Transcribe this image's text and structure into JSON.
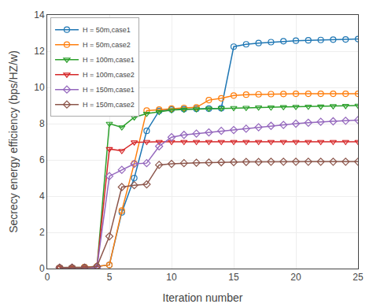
{
  "chart_data": {
    "type": "line",
    "xlabel": "Iteration number",
    "ylabel": "Secrecy energy efficiency (bps/HZ/w)",
    "xlim": [
      0,
      25
    ],
    "ylim": [
      0,
      14
    ],
    "xticks": [
      0,
      5,
      10,
      15,
      20,
      25
    ],
    "yticks": [
      0,
      2,
      4,
      6,
      8,
      10,
      12,
      14
    ],
    "x": [
      1,
      2,
      3,
      4,
      5,
      6,
      7,
      8,
      9,
      10,
      11,
      12,
      13,
      14,
      15,
      16,
      17,
      18,
      19,
      20,
      21,
      22,
      23,
      24,
      25
    ],
    "series": [
      {
        "name": "H = 50m,case1",
        "marker": "circle",
        "values": [
          0.05,
          0.05,
          0.08,
          0.12,
          0.2,
          3.1,
          5.0,
          7.6,
          8.7,
          8.78,
          8.8,
          8.82,
          8.83,
          8.85,
          12.25,
          12.38,
          12.45,
          12.5,
          12.55,
          12.58,
          12.6,
          12.62,
          12.64,
          12.65,
          12.67
        ]
      },
      {
        "name": "H = 50m,case2",
        "marker": "circle",
        "values": [
          0.05,
          0.05,
          0.08,
          0.12,
          0.2,
          3.2,
          5.8,
          8.72,
          8.78,
          8.83,
          8.87,
          8.9,
          9.3,
          9.4,
          9.55,
          9.6,
          9.62,
          9.63,
          9.64,
          9.65,
          9.65,
          9.65,
          9.65,
          9.65,
          9.65
        ]
      },
      {
        "name": "H = 100m,case1",
        "marker": "triangle-down",
        "values": [
          0.05,
          0.05,
          0.05,
          0.05,
          8.0,
          7.8,
          8.35,
          8.55,
          8.65,
          8.75,
          8.78,
          8.8,
          8.83,
          8.85,
          8.87,
          8.88,
          8.9,
          8.9,
          8.92,
          8.93,
          8.94,
          8.95,
          8.97,
          8.98,
          9.0
        ]
      },
      {
        "name": "H = 100m,case2",
        "marker": "triangle-down",
        "values": [
          0.05,
          0.05,
          0.05,
          0.05,
          6.6,
          6.5,
          6.97,
          7.0,
          7.0,
          7.0,
          7.0,
          7.0,
          7.0,
          7.0,
          7.0,
          7.0,
          7.0,
          7.0,
          7.0,
          7.0,
          7.0,
          7.0,
          7.0,
          7.0,
          7.0
        ]
      },
      {
        "name": "H = 150m,case1",
        "marker": "diamond",
        "values": [
          0.05,
          0.05,
          0.05,
          0.05,
          5.1,
          5.45,
          5.78,
          5.82,
          6.75,
          7.25,
          7.38,
          7.45,
          7.52,
          7.6,
          7.65,
          7.72,
          7.8,
          7.88,
          7.93,
          8.0,
          8.05,
          8.1,
          8.13,
          8.16,
          8.2
        ]
      },
      {
        "name": "H = 150m,case2",
        "marker": "diamond",
        "values": [
          0.05,
          0.05,
          0.05,
          0.12,
          1.78,
          4.5,
          4.6,
          4.65,
          5.72,
          5.78,
          5.82,
          5.84,
          5.85,
          5.87,
          5.88,
          5.89,
          5.89,
          5.9,
          5.9,
          5.9,
          5.9,
          5.9,
          5.9,
          5.9,
          5.9
        ]
      }
    ],
    "legend": "upper left",
    "grid": true
  }
}
